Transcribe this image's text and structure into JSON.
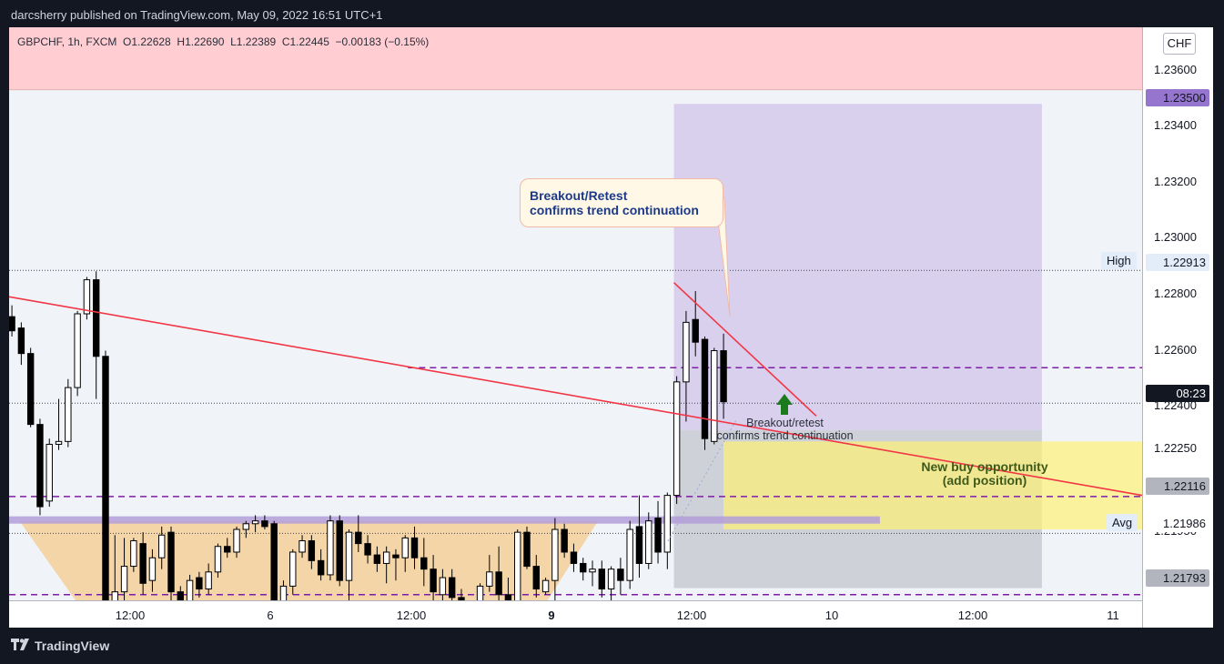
{
  "header": {
    "publish_text": "darcsherry published on TradingView.com, May 09, 2022 16:51 UTC+1"
  },
  "legend": {
    "text": "GBPCHF, 1h, FXCM  O1.22628  H1.22690  L1.22389  C1.22445  −0.00183 (−0.15%)"
  },
  "currency": "CHF",
  "price_axis": {
    "labels": [
      "1.23600",
      "1.23400",
      "1.23200",
      "1.23000",
      "1.22800",
      "1.22600",
      "1.22400",
      "1.22250",
      "1.21950"
    ]
  },
  "price_labels": {
    "target": "1.23500",
    "high": "1.22913",
    "countdown": "08:23",
    "entry": "1.22116",
    "avg": "1.21986",
    "stop": "1.21793"
  },
  "side_labels": {
    "high": "High",
    "avg": "Avg"
  },
  "time_axis": {
    "labels": [
      "12:00",
      "6",
      "12:00",
      "9",
      "12:00",
      "10",
      "12:00",
      "11"
    ]
  },
  "annotations": {
    "callout_line1": "Breakout/Retest",
    "callout_line2": "confirms trend continuation",
    "small_line1": "Breakout/retest",
    "small_line2": "confirms trend continuation",
    "buy_line1": "New buy opportunity",
    "buy_line2": "(add position)"
  },
  "footer": {
    "brand": "TradingView"
  },
  "colors": {
    "background": "#131722",
    "up_candle": "#ffffff",
    "down_candle": "#000000",
    "trendline": "#f23645",
    "target_zone": "#d1c4e9",
    "stop_zone": "#b2b5be",
    "buy_zone": "#fff176",
    "support_zone": "#f5cf9a",
    "dashed_levels": "#7b1fa2",
    "top_band": "#ffcdd2"
  },
  "chart_data": {
    "type": "candlestick",
    "symbol": "GBPCHF",
    "timeframe": "1h",
    "ylim": [
      1.2175,
      1.2377
    ],
    "x_index_range": [
      -0.3,
      120.7
    ],
    "x_ticks": [
      {
        "label": "12:00",
        "index": 12
      },
      {
        "label": "6",
        "index": 27
      },
      {
        "label": "12:00",
        "index": 42
      },
      {
        "label": "9",
        "index": 57
      },
      {
        "label": "12:00",
        "index": 72
      },
      {
        "label": "10",
        "index": 87
      },
      {
        "label": "12:00",
        "index": 102
      },
      {
        "label": "11",
        "index": 117
      }
    ],
    "candles": [
      {
        "o": 1.2275,
        "h": 1.2279,
        "l": 1.2268,
        "c": 1.227
      },
      {
        "o": 1.2271,
        "h": 1.2273,
        "l": 1.2258,
        "c": 1.2262
      },
      {
        "o": 1.2262,
        "h": 1.2264,
        "l": 1.2236,
        "c": 1.2237
      },
      {
        "o": 1.2237,
        "h": 1.2239,
        "l": 1.2205,
        "c": 1.2208
      },
      {
        "o": 1.221,
        "h": 1.2232,
        "l": 1.2208,
        "c": 1.223
      },
      {
        "o": 1.223,
        "h": 1.2246,
        "l": 1.2228,
        "c": 1.2231
      },
      {
        "o": 1.2231,
        "h": 1.2253,
        "l": 1.2229,
        "c": 1.225
      },
      {
        "o": 1.225,
        "h": 1.2277,
        "l": 1.2247,
        "c": 1.2276
      },
      {
        "o": 1.2276,
        "h": 1.2289,
        "l": 1.2274,
        "c": 1.2288
      },
      {
        "o": 1.2288,
        "h": 1.2291,
        "l": 1.2246,
        "c": 1.2261
      },
      {
        "o": 1.2261,
        "h": 1.2263,
        "l": 1.2171,
        "c": 1.2172
      },
      {
        "o": 1.2173,
        "h": 1.2198,
        "l": 1.2165,
        "c": 1.2178
      },
      {
        "o": 1.2178,
        "h": 1.2197,
        "l": 1.2172,
        "c": 1.2187
      },
      {
        "o": 1.2187,
        "h": 1.2197,
        "l": 1.2185,
        "c": 1.2196
      },
      {
        "o": 1.2195,
        "h": 1.2199,
        "l": 1.2177,
        "c": 1.2181
      },
      {
        "o": 1.2182,
        "h": 1.2193,
        "l": 1.2178,
        "c": 1.219
      },
      {
        "o": 1.219,
        "h": 1.2201,
        "l": 1.2186,
        "c": 1.2198
      },
      {
        "o": 1.2199,
        "h": 1.2201,
        "l": 1.2175,
        "c": 1.2178
      },
      {
        "o": 1.2178,
        "h": 1.218,
        "l": 1.2168,
        "c": 1.2172
      },
      {
        "o": 1.2171,
        "h": 1.2184,
        "l": 1.2167,
        "c": 1.2182
      },
      {
        "o": 1.2183,
        "h": 1.2185,
        "l": 1.2176,
        "c": 1.2179
      },
      {
        "o": 1.2179,
        "h": 1.2188,
        "l": 1.2177,
        "c": 1.2185
      },
      {
        "o": 1.2185,
        "h": 1.2195,
        "l": 1.2183,
        "c": 1.2194
      },
      {
        "o": 1.2194,
        "h": 1.2197,
        "l": 1.219,
        "c": 1.2192
      },
      {
        "o": 1.2192,
        "h": 1.2201,
        "l": 1.219,
        "c": 1.22
      },
      {
        "o": 1.22,
        "h": 1.2203,
        "l": 1.2197,
        "c": 1.2202
      },
      {
        "o": 1.2202,
        "h": 1.2205,
        "l": 1.2199,
        "c": 1.2203
      },
      {
        "o": 1.2203,
        "h": 1.2205,
        "l": 1.22,
        "c": 1.2201
      },
      {
        "o": 1.2202,
        "h": 1.2203,
        "l": 1.2164,
        "c": 1.2165
      },
      {
        "o": 1.2166,
        "h": 1.2182,
        "l": 1.2164,
        "c": 1.218
      },
      {
        "o": 1.218,
        "h": 1.2193,
        "l": 1.2177,
        "c": 1.2192
      },
      {
        "o": 1.2192,
        "h": 1.2198,
        "l": 1.219,
        "c": 1.2196
      },
      {
        "o": 1.2196,
        "h": 1.2198,
        "l": 1.2186,
        "c": 1.2189
      },
      {
        "o": 1.2189,
        "h": 1.2193,
        "l": 1.2182,
        "c": 1.2184
      },
      {
        "o": 1.2184,
        "h": 1.2205,
        "l": 1.2182,
        "c": 1.2203
      },
      {
        "o": 1.2203,
        "h": 1.2205,
        "l": 1.218,
        "c": 1.2182
      },
      {
        "o": 1.2182,
        "h": 1.22,
        "l": 1.2175,
        "c": 1.2199
      },
      {
        "o": 1.2199,
        "h": 1.2205,
        "l": 1.2192,
        "c": 1.2195
      },
      {
        "o": 1.2195,
        "h": 1.2198,
        "l": 1.2188,
        "c": 1.2191
      },
      {
        "o": 1.2191,
        "h": 1.2194,
        "l": 1.2185,
        "c": 1.2188
      },
      {
        "o": 1.2188,
        "h": 1.2194,
        "l": 1.2181,
        "c": 1.2192
      },
      {
        "o": 1.2191,
        "h": 1.2193,
        "l": 1.2182,
        "c": 1.219
      },
      {
        "o": 1.219,
        "h": 1.2198,
        "l": 1.2185,
        "c": 1.2197
      },
      {
        "o": 1.2197,
        "h": 1.2201,
        "l": 1.2186,
        "c": 1.219
      },
      {
        "o": 1.219,
        "h": 1.2197,
        "l": 1.218,
        "c": 1.2186
      },
      {
        "o": 1.2186,
        "h": 1.2191,
        "l": 1.2174,
        "c": 1.2178
      },
      {
        "o": 1.2177,
        "h": 1.2186,
        "l": 1.2169,
        "c": 1.2183
      },
      {
        "o": 1.2183,
        "h": 1.2186,
        "l": 1.2166,
        "c": 1.2176
      },
      {
        "o": 1.2176,
        "h": 1.2179,
        "l": 1.217,
        "c": 1.2172
      },
      {
        "o": 1.2172,
        "h": 1.2174,
        "l": 1.2165,
        "c": 1.2168
      },
      {
        "o": 1.2169,
        "h": 1.2181,
        "l": 1.2165,
        "c": 1.218
      },
      {
        "o": 1.218,
        "h": 1.2191,
        "l": 1.2178,
        "c": 1.2185
      },
      {
        "o": 1.2185,
        "h": 1.2194,
        "l": 1.2174,
        "c": 1.2177
      },
      {
        "o": 1.2177,
        "h": 1.2183,
        "l": 1.2164,
        "c": 1.2167
      },
      {
        "o": 1.2167,
        "h": 1.22,
        "l": 1.2166,
        "c": 1.2199
      },
      {
        "o": 1.2199,
        "h": 1.2201,
        "l": 1.2186,
        "c": 1.2187
      },
      {
        "o": 1.2187,
        "h": 1.2191,
        "l": 1.2176,
        "c": 1.2179
      },
      {
        "o": 1.2178,
        "h": 1.2183,
        "l": 1.2177,
        "c": 1.2182
      },
      {
        "o": 1.2182,
        "h": 1.2204,
        "l": 1.2174,
        "c": 1.22
      },
      {
        "o": 1.22,
        "h": 1.2202,
        "l": 1.219,
        "c": 1.2192
      },
      {
        "o": 1.2192,
        "h": 1.2195,
        "l": 1.2185,
        "c": 1.2188
      },
      {
        "o": 1.2188,
        "h": 1.219,
        "l": 1.2182,
        "c": 1.2185
      },
      {
        "o": 1.2185,
        "h": 1.2189,
        "l": 1.218,
        "c": 1.2186
      },
      {
        "o": 1.2186,
        "h": 1.2189,
        "l": 1.2176,
        "c": 1.2179
      },
      {
        "o": 1.2179,
        "h": 1.2187,
        "l": 1.2175,
        "c": 1.2186
      },
      {
        "o": 1.2186,
        "h": 1.219,
        "l": 1.2177,
        "c": 1.2182
      },
      {
        "o": 1.2182,
        "h": 1.2203,
        "l": 1.2179,
        "c": 1.22
      },
      {
        "o": 1.2201,
        "h": 1.2212,
        "l": 1.2183,
        "c": 1.2188
      },
      {
        "o": 1.2188,
        "h": 1.2206,
        "l": 1.2186,
        "c": 1.2203
      },
      {
        "o": 1.2204,
        "h": 1.221,
        "l": 1.2188,
        "c": 1.2192
      },
      {
        "o": 1.2192,
        "h": 1.2213,
        "l": 1.2186,
        "c": 1.2212
      },
      {
        "o": 1.2212,
        "h": 1.2254,
        "l": 1.2209,
        "c": 1.2252
      },
      {
        "o": 1.2252,
        "h": 1.2277,
        "l": 1.2238,
        "c": 1.2273
      },
      {
        "o": 1.2274,
        "h": 1.2284,
        "l": 1.2261,
        "c": 1.2266
      },
      {
        "o": 1.2267,
        "h": 1.2268,
        "l": 1.2228,
        "c": 1.2232
      },
      {
        "o": 1.2231,
        "h": 1.2264,
        "l": 1.223,
        "c": 1.2263
      },
      {
        "o": 1.2263,
        "h": 1.2269,
        "l": 1.2239,
        "c": 1.2245
      }
    ],
    "levels": [
      {
        "name": "target",
        "y": 1.235
      },
      {
        "name": "high",
        "y": 1.22913
      },
      {
        "name": "upper-dashed",
        "y": 1.2257
      },
      {
        "name": "last-price",
        "y": 1.22445
      },
      {
        "name": "entry",
        "y": 1.22116
      },
      {
        "name": "avg",
        "y": 1.21986
      },
      {
        "name": "stop",
        "y": 1.21793
      },
      {
        "name": "lower-dashed",
        "y": 1.2177
      }
    ],
    "trendline": {
      "x1": -0.3,
      "y1": 1.2282,
      "x2": 120.7,
      "y2": 1.2212
    },
    "small_trendline": {
      "x1": 70.7,
      "y1": 1.2287,
      "x2": 85.9,
      "y2": 1.224
    },
    "zones": {
      "target": {
        "x1": 70.7,
        "x2": 110.0,
        "y1": 1.2235,
        "y2": 1.235
      },
      "stop": {
        "x1": 70.7,
        "x2": 110.0,
        "y1": 1.21793,
        "y2": 1.2235
      },
      "buy": {
        "x1": 76.0,
        "x2": 120.7,
        "y1": 1.22,
        "y2": 1.2231
      },
      "support": {
        "x1": -0.3,
        "x2": 92.7,
        "y1": 1.2203,
        "y2": 1.22
      },
      "top_band": {
        "y1": 1.2355,
        "y2": 1.2377
      }
    }
  }
}
